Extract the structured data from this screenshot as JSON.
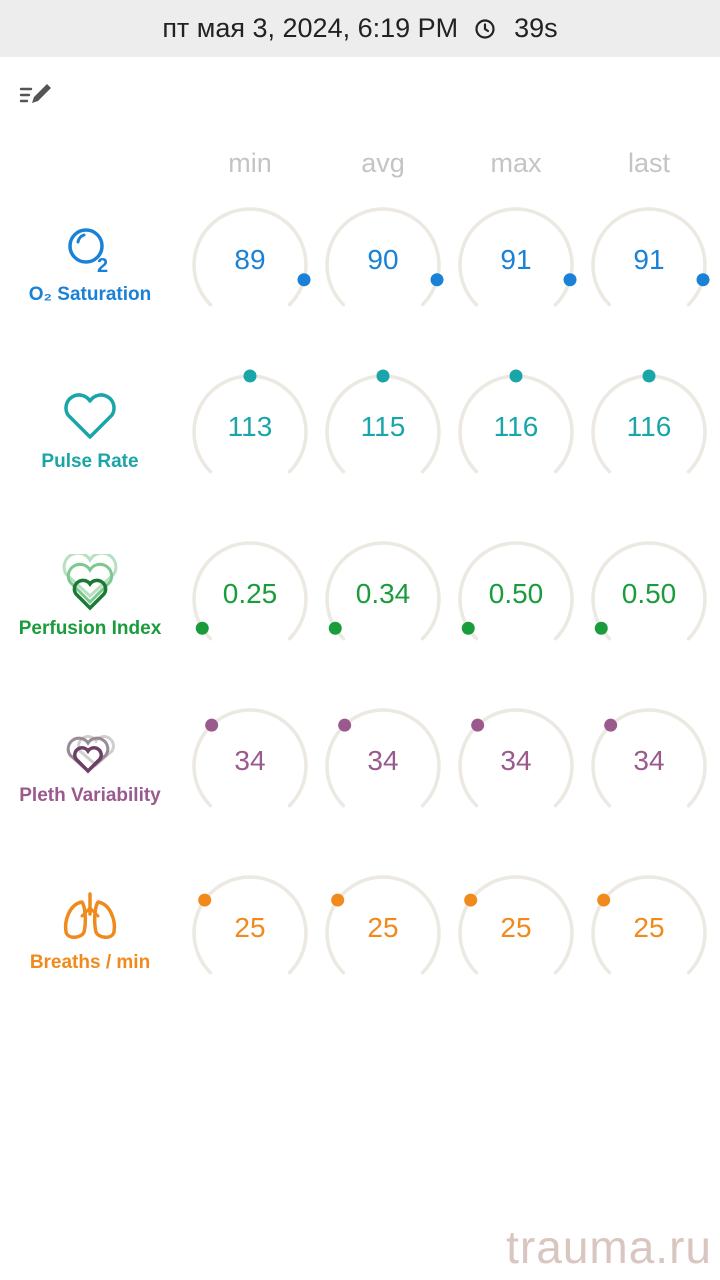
{
  "status_bar": {
    "datetime": "пт мая 3, 2024, 6:19 PM",
    "duration": "39s"
  },
  "columns": [
    "min",
    "avg",
    "max",
    "last"
  ],
  "metrics": [
    {
      "key": "o2",
      "label": "O₂ Saturation",
      "color": "#1a82d6",
      "icon": "o2-bubble-icon",
      "values": [
        "89",
        "90",
        "91",
        "91"
      ],
      "level": 0.89
    },
    {
      "key": "pulse",
      "label": "Pulse Rate",
      "color": "#1aa6a8",
      "icon": "heart-outline-icon",
      "values": [
        "113",
        "115",
        "116",
        "116"
      ],
      "level": 0.5
    },
    {
      "key": "pi",
      "label": "Perfusion Index",
      "color": "#1a9c3c",
      "icon": "layered-hearts-icon",
      "values": [
        "0.25",
        "0.34",
        "0.50",
        "0.50"
      ],
      "level": 0.05
    },
    {
      "key": "pvi",
      "label": "Pleth Variability",
      "color": "#9a5a8e",
      "icon": "pleth-hearts-icon",
      "values": [
        "34",
        "34",
        "34",
        "34"
      ],
      "level": 0.34
    },
    {
      "key": "rr",
      "label": "Breaths / min",
      "color": "#f08a1c",
      "icon": "lungs-icon",
      "values": [
        "25",
        "25",
        "25",
        "25"
      ],
      "level": 0.3
    }
  ],
  "watermark": "trauma.ru"
}
